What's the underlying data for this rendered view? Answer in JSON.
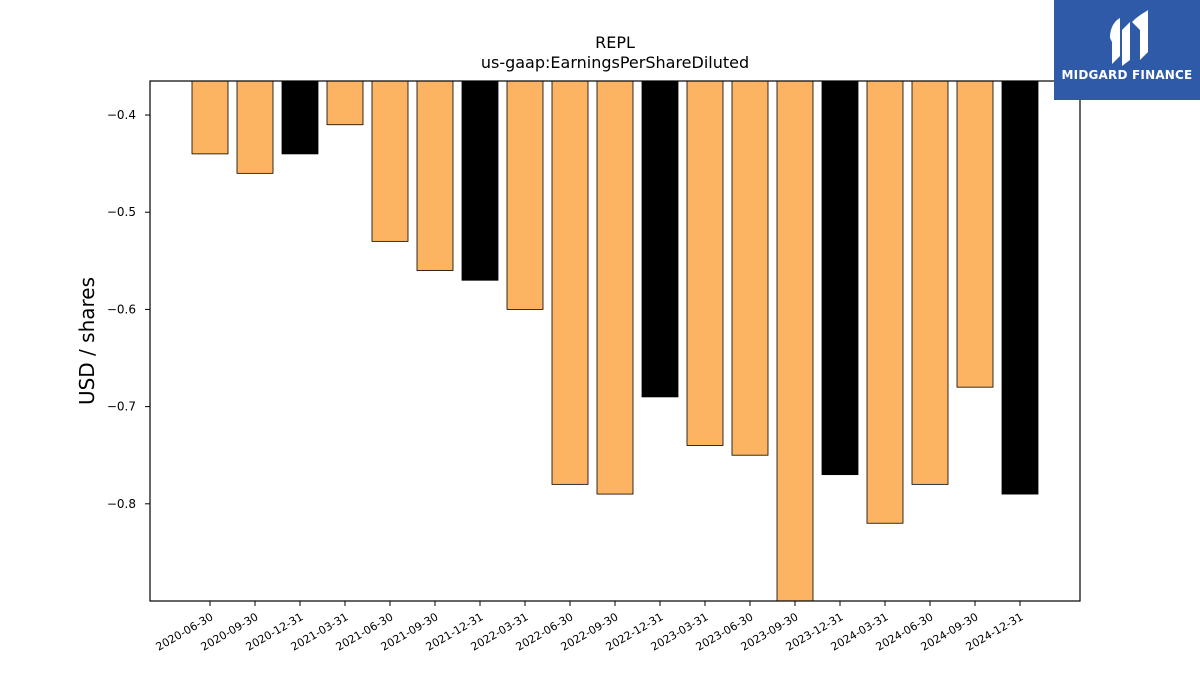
{
  "brand": {
    "name": "MIDGARD FINANCE",
    "bg_color": "#2f5aa8"
  },
  "chart_data": {
    "type": "bar",
    "title": "REPL",
    "subtitle": "us-gaap:EarningsPerShareDiluted",
    "xlabel": "",
    "ylabel": "USD / shares",
    "ylim": [
      -0.9,
      -0.365
    ],
    "yticks": [
      -0.4,
      -0.5,
      -0.6,
      -0.7,
      -0.8
    ],
    "grid": false,
    "colors": {
      "quarter": "#fdb462",
      "year_end": "#000000",
      "edge": "#000000"
    },
    "categories": [
      "2020-06-30",
      "2020-09-30",
      "2020-12-31",
      "2021-03-31",
      "2021-06-30",
      "2021-09-30",
      "2021-12-31",
      "2022-03-31",
      "2022-06-30",
      "2022-09-30",
      "2022-12-31",
      "2023-03-31",
      "2023-06-30",
      "2023-09-30",
      "2023-12-31",
      "2024-03-31",
      "2024-06-30",
      "2024-09-30",
      "2024-12-31"
    ],
    "values": [
      -0.44,
      -0.46,
      -0.44,
      -0.41,
      -0.53,
      -0.56,
      -0.57,
      -0.6,
      -0.78,
      -0.79,
      -0.69,
      -0.74,
      -0.75,
      -0.9,
      -0.77,
      -0.82,
      -0.78,
      -0.68,
      -0.79
    ],
    "year_end": [
      false,
      false,
      true,
      false,
      false,
      false,
      true,
      false,
      false,
      false,
      true,
      false,
      false,
      false,
      true,
      false,
      false,
      false,
      true
    ]
  }
}
